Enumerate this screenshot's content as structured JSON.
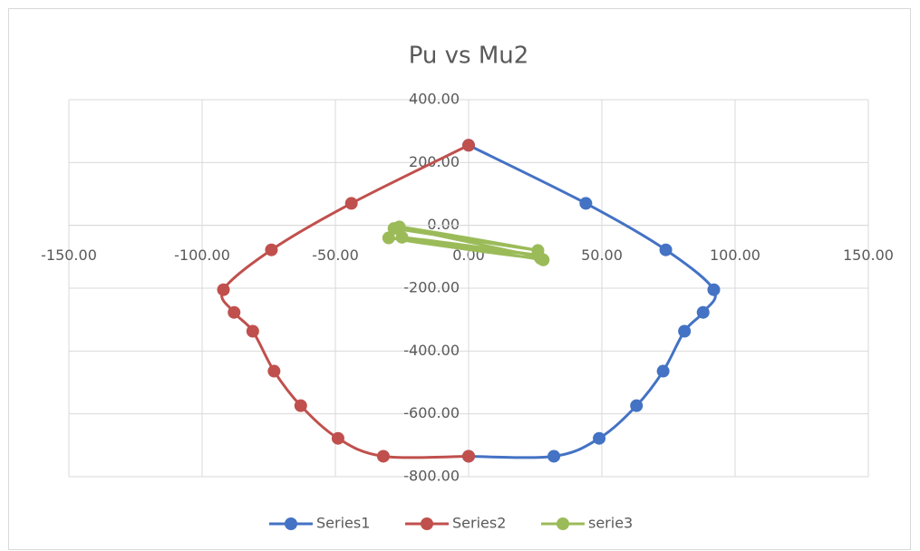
{
  "chart_data": {
    "type": "scatter",
    "title": "Pu vs Mu2",
    "xlim": [
      -150,
      150
    ],
    "xticks": [
      {
        "value": -150,
        "label": "-150.00"
      },
      {
        "value": -100,
        "label": "-100.00"
      },
      {
        "value": -50,
        "label": "-50.00"
      },
      {
        "value": 0,
        "label": "0.00"
      },
      {
        "value": 50,
        "label": "50.00"
      },
      {
        "value": 100,
        "label": "100.00"
      },
      {
        "value": 150,
        "label": "150.00"
      }
    ],
    "ylim": [
      -800,
      400
    ],
    "yticks": [
      {
        "value": 400,
        "label": "400.00"
      },
      {
        "value": 200,
        "label": "200.00"
      },
      {
        "value": 0,
        "label": "0.00"
      },
      {
        "value": -200,
        "label": "-200.00"
      },
      {
        "value": -400,
        "label": "-400.00"
      },
      {
        "value": -600,
        "label": "-600.00"
      },
      {
        "value": -800,
        "label": "-800.00"
      }
    ],
    "grid": true,
    "smooth": true,
    "legend": "bottom",
    "series": [
      {
        "name": "Series1",
        "color": "#4472c4",
        "x": [
          0,
          44,
          74,
          92,
          88,
          81,
          73,
          63,
          49,
          32,
          0
        ],
        "values": [
          255,
          70,
          -78,
          -205,
          -277,
          -337,
          -464,
          -574,
          -678,
          -735,
          -735
        ]
      },
      {
        "name": "Series2",
        "color": "#c0504d",
        "x": [
          0,
          -44,
          -74,
          -92,
          -88,
          -81,
          -73,
          -63,
          -49,
          -32,
          0
        ],
        "values": [
          255,
          70,
          -78,
          -205,
          -277,
          -337,
          -464,
          -574,
          -678,
          -735,
          -735
        ]
      },
      {
        "name": "serie3",
        "color": "#9bbb59",
        "x": [
          -28,
          26,
          -26,
          27,
          -30,
          26,
          -25,
          28
        ],
        "values": [
          -10,
          -80,
          -5,
          -105,
          -40,
          -95,
          -38,
          -110
        ]
      }
    ]
  }
}
